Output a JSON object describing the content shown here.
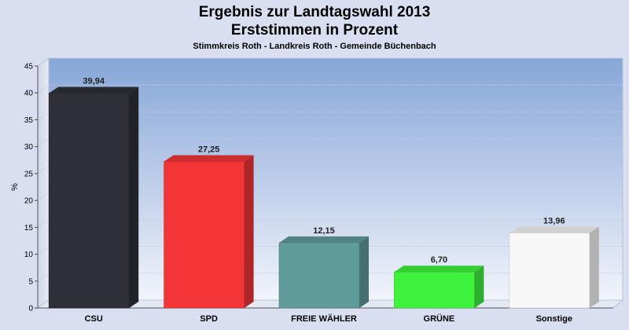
{
  "header": {
    "title_line1": "Ergebnis zur Landtagswahl 2013",
    "title_line2": "Erststimmen in Prozent",
    "subtitle": "Stimmkreis Roth - Landkreis Roth - Gemeinde Büchenbach"
  },
  "chart_data": {
    "type": "bar",
    "title": "Ergebnis zur Landtagswahl 2013 Erststimmen in Prozent",
    "subtitle": "Stimmkreis Roth - Landkreis Roth - Gemeinde Büchenbach",
    "xlabel": "",
    "ylabel": "%",
    "ylim": [
      0,
      45
    ],
    "yticks": [
      0,
      5,
      10,
      15,
      20,
      25,
      30,
      35,
      40,
      45
    ],
    "grid": true,
    "categories": [
      "CSU",
      "SPD",
      "FREIE WÄHLER",
      "GRÜNE",
      "Sonstige"
    ],
    "values": [
      39.94,
      27.25,
      12.15,
      6.7,
      13.96
    ],
    "value_labels": [
      "39,94",
      "27,25",
      "12,15",
      "6,70",
      "13,96"
    ],
    "colors": [
      "#2f3037",
      "#f23537",
      "#5f9b9a",
      "#3ff23d",
      "#f7f7f7"
    ]
  }
}
